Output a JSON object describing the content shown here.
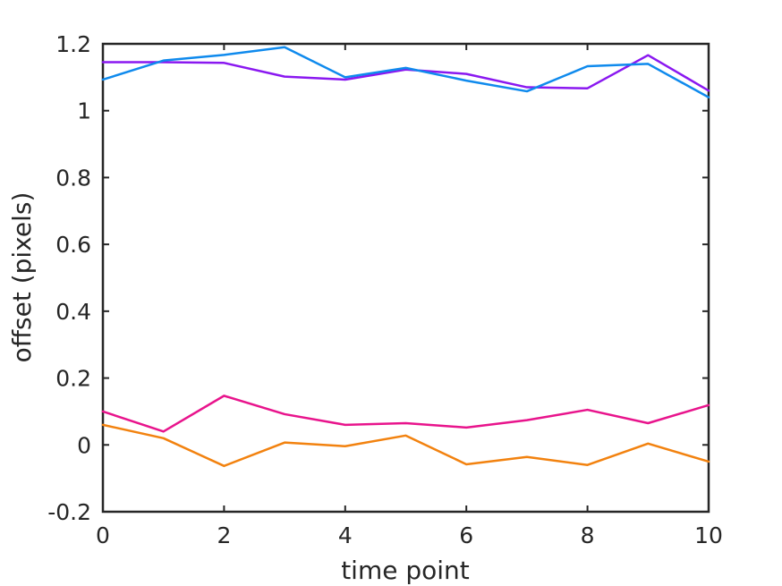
{
  "chart_data": {
    "type": "line",
    "title": "",
    "xlabel": "time point",
    "ylabel": "offset (pixels)",
    "xlim": [
      0,
      10
    ],
    "ylim": [
      -0.2,
      1.2
    ],
    "xticks": [
      0,
      2,
      4,
      6,
      8,
      10
    ],
    "xtick_labels": [
      "0",
      "2",
      "4",
      "6",
      "8",
      "10"
    ],
    "yticks": [
      -0.2,
      0,
      0.2,
      0.4,
      0.6,
      0.8,
      1,
      1.2
    ],
    "ytick_labels": [
      "-0.2",
      "0",
      "0.2",
      "0.4",
      "0.6",
      "0.8",
      "1",
      "1.2"
    ],
    "grid": false,
    "legend": false,
    "x": [
      0,
      1,
      2,
      3,
      4,
      5,
      6,
      7,
      8,
      9,
      10
    ],
    "series": [
      {
        "color": "#8a18f0",
        "values": [
          1.145,
          1.145,
          1.143,
          1.102,
          1.093,
          1.123,
          1.11,
          1.07,
          1.067,
          1.166,
          1.06
        ]
      },
      {
        "color": "#0f8aed",
        "values": [
          1.093,
          1.15,
          1.167,
          1.19,
          1.1,
          1.128,
          1.09,
          1.058,
          1.133,
          1.14,
          1.04
        ]
      },
      {
        "color": "#e8148c",
        "values": [
          0.1,
          0.04,
          0.147,
          0.092,
          0.06,
          0.065,
          0.052,
          0.074,
          0.105,
          0.065,
          0.119
        ]
      },
      {
        "color": "#f2820f",
        "values": [
          0.06,
          0.02,
          -0.063,
          0.007,
          -0.004,
          0.028,
          -0.058,
          -0.036,
          -0.06,
          0.004,
          -0.05
        ]
      }
    ]
  }
}
